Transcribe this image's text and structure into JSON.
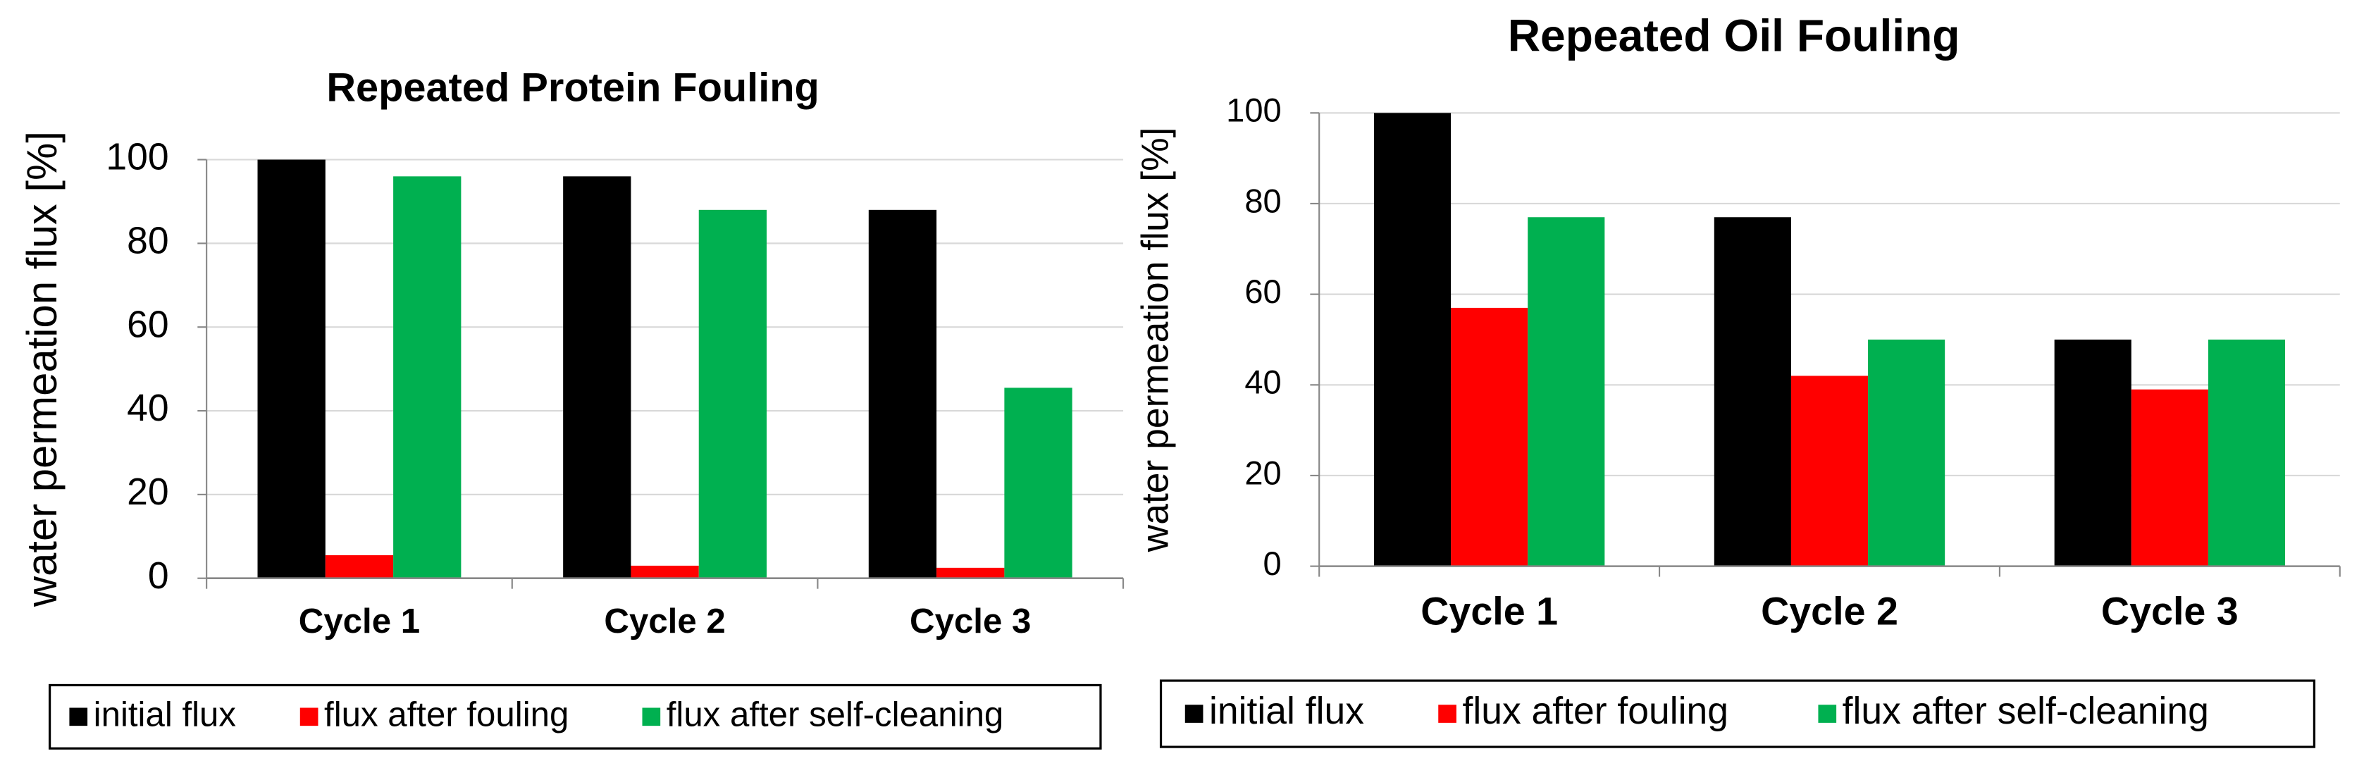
{
  "chart_data": [
    {
      "type": "bar",
      "title": "Repeated Protein Fouling",
      "y_label": "water permeation flux [%]",
      "categories": [
        "Cycle 1",
        "Cycle 2",
        "Cycle 3"
      ],
      "series": [
        {
          "name": "initial flux",
          "color": "#000000",
          "values": [
            100,
            96,
            88
          ]
        },
        {
          "name": "flux after fouling",
          "color": "#ff0000",
          "values": [
            5.5,
            3,
            2.5
          ]
        },
        {
          "name": "flux after self-cleaning",
          "color": "#00b050",
          "values": [
            96,
            88,
            45.5
          ]
        }
      ],
      "ylim": [
        0,
        100
      ],
      "yticks": [
        0,
        20,
        40,
        60,
        80,
        100
      ],
      "grid": true,
      "legend": "bottom"
    },
    {
      "type": "bar",
      "title": "Repeated Oil Fouling",
      "y_label": "water permeation flux [%]",
      "categories": [
        "Cycle 1",
        "Cycle 2",
        "Cycle 3"
      ],
      "series": [
        {
          "name": "initial flux",
          "color": "#000000",
          "values": [
            100,
            77,
            50
          ]
        },
        {
          "name": "flux after fouling",
          "color": "#ff0000",
          "values": [
            57,
            42,
            39
          ]
        },
        {
          "name": "flux after self-cleaning",
          "color": "#00b050",
          "values": [
            77,
            50,
            50
          ]
        }
      ],
      "ylim": [
        0,
        100
      ],
      "yticks": [
        0,
        20,
        40,
        60,
        80,
        100
      ],
      "grid": true,
      "legend": "bottom"
    }
  ]
}
